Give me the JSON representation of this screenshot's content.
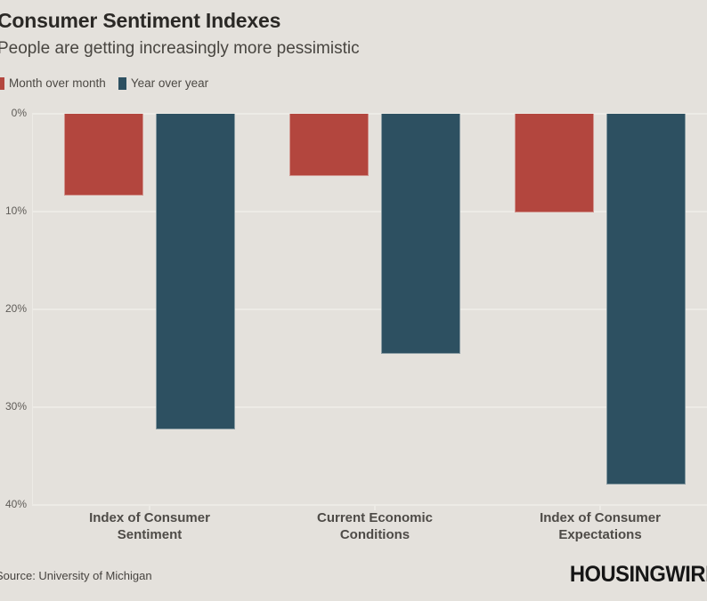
{
  "meta": {
    "background_color": "#e4e1dc",
    "gridline_color": "#edebe6"
  },
  "chart_data": {
    "type": "bar",
    "title": "Consumer Sentiment Indexes",
    "subtitle": "People are getting increasingly more pessimistic",
    "categories": [
      "Index of Consumer Sentiment",
      "Current Economic Conditions",
      "Index of Consumer Expectations"
    ],
    "category_lines": [
      [
        "Index of Consumer",
        "Sentiment"
      ],
      [
        "Current Economic",
        "Conditions"
      ],
      [
        "Index of Consumer",
        "Expectations"
      ]
    ],
    "series": [
      {
        "name": "Month over month",
        "color": "#b3463e",
        "values": [
          -8.4,
          -6.4,
          -10.1
        ]
      },
      {
        "name": "Year over year",
        "color": "#2d5061",
        "values": [
          -32.3,
          -24.5,
          -37.9
        ]
      }
    ],
    "xlabel": "",
    "ylabel": "",
    "ylim": [
      -40,
      0
    ],
    "ytick_labels": [
      "0%",
      "10%",
      "20%",
      "30%",
      "40%"
    ],
    "grid": true,
    "legend_position": "top-left"
  },
  "footer": {
    "source": "Source: University of Michigan",
    "brand": "HOUSINGWIRE"
  }
}
